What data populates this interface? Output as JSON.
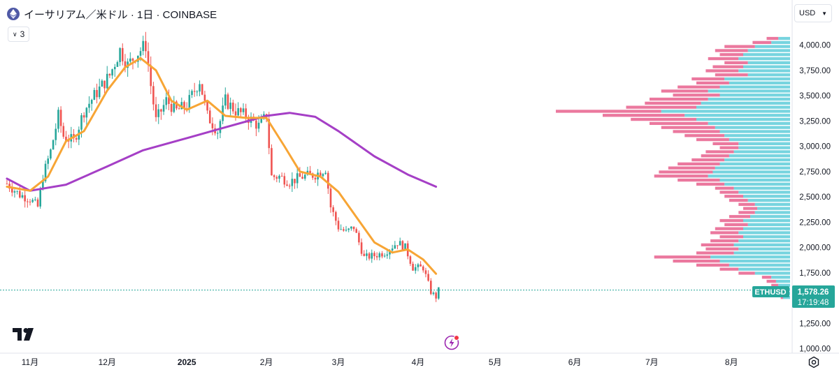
{
  "header": {
    "title": "イーサリアム／米ドル · 1日 · COINBASE",
    "coin_icon": "ethereum-icon",
    "indicator_count": "3",
    "currency": "USD"
  },
  "colors": {
    "up": "#26a69a",
    "down": "#ef5350",
    "ma_fast": "#f7a535",
    "ma_slow": "#a53fc6",
    "vp_up": "#49c6d4",
    "vp_down": "#e8608d",
    "price_line": "#26a69a"
  },
  "chart_data": {
    "type": "candlestick",
    "symbol": "ETHUSD",
    "x_tick_labels": [
      "11月",
      "12月",
      "2025",
      "2月",
      "3月",
      "4月",
      "5月",
      "6月",
      "7月",
      "8月"
    ],
    "y_tick_labels": [
      "1,000.00",
      "1,250.00",
      "1,500.00",
      "1,750.00",
      "2,000.00",
      "2,250.00",
      "2,500.00",
      "2,750.00",
      "3,000.00",
      "3,250.00",
      "3,500.00",
      "3,750.00",
      "4,000.00"
    ],
    "ylim": [
      980,
      4100
    ],
    "last_price": "1,578.26",
    "countdown": "17:19:48",
    "price_path": [
      [
        "2024-10-23",
        2630
      ],
      [
        "2024-10-28",
        2520
      ],
      [
        "2024-11-01",
        2480
      ],
      [
        "2024-11-04",
        2400
      ],
      [
        "2024-11-06",
        2700
      ],
      [
        "2024-11-09",
        2950
      ],
      [
        "2024-11-12",
        3300
      ],
      [
        "2024-11-14",
        3100
      ],
      [
        "2024-11-18",
        3050
      ],
      [
        "2024-11-22",
        3350
      ],
      [
        "2024-11-26",
        3500
      ],
      [
        "2024-11-29",
        3600
      ],
      [
        "2024-12-02",
        3700
      ],
      [
        "2024-12-06",
        3950
      ],
      [
        "2024-12-09",
        3800
      ],
      [
        "2024-12-12",
        3900
      ],
      [
        "2024-12-16",
        4000
      ],
      [
        "2024-12-18",
        3600
      ],
      [
        "2024-12-20",
        3250
      ],
      [
        "2024-12-24",
        3450
      ],
      [
        "2024-12-28",
        3350
      ],
      [
        "2025-01-01",
        3400
      ],
      [
        "2025-01-06",
        3650
      ],
      [
        "2025-01-09",
        3300
      ],
      [
        "2025-01-13",
        3150
      ],
      [
        "2025-01-16",
        3450
      ],
      [
        "2025-01-20",
        3350
      ],
      [
        "2025-01-24",
        3300
      ],
      [
        "2025-01-29",
        3200
      ],
      [
        "2025-02-01",
        3300
      ],
      [
        "2025-02-03",
        2700
      ],
      [
        "2025-02-06",
        2700
      ],
      [
        "2025-02-10",
        2650
      ],
      [
        "2025-02-15",
        2700
      ],
      [
        "2025-02-20",
        2720
      ],
      [
        "2025-02-24",
        2780
      ],
      [
        "2025-02-26",
        2400
      ],
      [
        "2025-03-01",
        2200
      ],
      [
        "2025-03-04",
        2150
      ],
      [
        "2025-03-07",
        2200
      ],
      [
        "2025-03-11",
        1900
      ],
      [
        "2025-03-15",
        1920
      ],
      [
        "2025-03-19",
        1950
      ],
      [
        "2025-03-24",
        2050
      ],
      [
        "2025-03-27",
        2000
      ],
      [
        "2025-03-30",
        1800
      ],
      [
        "2025-04-03",
        1800
      ],
      [
        "2025-04-06",
        1560
      ],
      [
        "2025-04-08",
        1510
      ],
      [
        "2025-04-09",
        1578
      ]
    ],
    "ma_fast": [
      [
        "2024-10-23",
        2600
      ],
      [
        "2024-11-01",
        2560
      ],
      [
        "2024-11-08",
        2700
      ],
      [
        "2024-11-15",
        3050
      ],
      [
        "2024-11-22",
        3150
      ],
      [
        "2024-12-01",
        3550
      ],
      [
        "2024-12-08",
        3780
      ],
      [
        "2024-12-14",
        3870
      ],
      [
        "2024-12-20",
        3750
      ],
      [
        "2024-12-26",
        3450
      ],
      [
        "2025-01-01",
        3360
      ],
      [
        "2025-01-09",
        3450
      ],
      [
        "2025-01-16",
        3300
      ],
      [
        "2025-01-24",
        3280
      ],
      [
        "2025-02-01",
        3280
      ],
      [
        "2025-02-08",
        3000
      ],
      [
        "2025-02-14",
        2750
      ],
      [
        "2025-02-22",
        2700
      ],
      [
        "2025-03-01",
        2550
      ],
      [
        "2025-03-08",
        2300
      ],
      [
        "2025-03-15",
        2050
      ],
      [
        "2025-03-22",
        1950
      ],
      [
        "2025-03-28",
        1980
      ],
      [
        "2025-04-03",
        1880
      ],
      [
        "2025-04-08",
        1740
      ]
    ],
    "ma_slow": [
      [
        "2024-10-23",
        2680
      ],
      [
        "2024-11-01",
        2560
      ],
      [
        "2024-11-15",
        2620
      ],
      [
        "2024-12-01",
        2800
      ],
      [
        "2024-12-15",
        2960
      ],
      [
        "2025-01-01",
        3080
      ],
      [
        "2025-01-15",
        3180
      ],
      [
        "2025-02-01",
        3300
      ],
      [
        "2025-02-10",
        3330
      ],
      [
        "2025-02-20",
        3290
      ],
      [
        "2025-03-01",
        3150
      ],
      [
        "2025-03-15",
        2900
      ],
      [
        "2025-03-28",
        2720
      ],
      [
        "2025-04-08",
        2600
      ]
    ],
    "volume_profile": {
      "description_of_levels": "horizontal histogram at right edge",
      "rows": [
        [
          4060,
          0.1,
          0.05
        ],
        [
          4020,
          0.16,
          0.08
        ],
        [
          3980,
          0.28,
          0.15
        ],
        [
          3940,
          0.32,
          0.18
        ],
        [
          3900,
          0.3,
          0.2
        ],
        [
          3860,
          0.35,
          0.22
        ],
        [
          3820,
          0.28,
          0.18
        ],
        [
          3780,
          0.33,
          0.2
        ],
        [
          3740,
          0.36,
          0.22
        ],
        [
          3700,
          0.32,
          0.18
        ],
        [
          3660,
          0.42,
          0.28
        ],
        [
          3620,
          0.4,
          0.26
        ],
        [
          3580,
          0.48,
          0.3
        ],
        [
          3540,
          0.55,
          0.35
        ],
        [
          3500,
          0.5,
          0.3
        ],
        [
          3460,
          0.6,
          0.35
        ],
        [
          3420,
          0.62,
          0.38
        ],
        [
          3380,
          0.7,
          0.4
        ],
        [
          3340,
          1.0,
          0.55
        ],
        [
          3300,
          0.8,
          0.45
        ],
        [
          3260,
          0.68,
          0.4
        ],
        [
          3220,
          0.6,
          0.35
        ],
        [
          3180,
          0.55,
          0.32
        ],
        [
          3140,
          0.5,
          0.3
        ],
        [
          3100,
          0.45,
          0.28
        ],
        [
          3060,
          0.4,
          0.26
        ],
        [
          3020,
          0.33,
          0.22
        ],
        [
          2980,
          0.3,
          0.22
        ],
        [
          2940,
          0.36,
          0.24
        ],
        [
          2900,
          0.38,
          0.26
        ],
        [
          2860,
          0.42,
          0.28
        ],
        [
          2820,
          0.48,
          0.3
        ],
        [
          2780,
          0.52,
          0.32
        ],
        [
          2740,
          0.56,
          0.33
        ],
        [
          2700,
          0.58,
          0.35
        ],
        [
          2660,
          0.48,
          0.3
        ],
        [
          2620,
          0.4,
          0.28
        ],
        [
          2580,
          0.32,
          0.24
        ],
        [
          2540,
          0.3,
          0.22
        ],
        [
          2500,
          0.28,
          0.2
        ],
        [
          2460,
          0.26,
          0.18
        ],
        [
          2420,
          0.22,
          0.15
        ],
        [
          2380,
          0.2,
          0.14
        ],
        [
          2340,
          0.22,
          0.15
        ],
        [
          2300,
          0.26,
          0.17
        ],
        [
          2260,
          0.3,
          0.2
        ],
        [
          2220,
          0.28,
          0.18
        ],
        [
          2180,
          0.32,
          0.2
        ],
        [
          2140,
          0.34,
          0.22
        ],
        [
          2100,
          0.3,
          0.2
        ],
        [
          2060,
          0.34,
          0.22
        ],
        [
          2020,
          0.38,
          0.24
        ],
        [
          1980,
          0.36,
          0.22
        ],
        [
          1940,
          0.4,
          0.24
        ],
        [
          1900,
          0.58,
          0.34
        ],
        [
          1860,
          0.5,
          0.3
        ],
        [
          1820,
          0.4,
          0.26
        ],
        [
          1780,
          0.3,
          0.22
        ],
        [
          1740,
          0.22,
          0.15
        ],
        [
          1700,
          0.12,
          0.08
        ],
        [
          1660,
          0.1,
          0.06
        ],
        [
          1620,
          0.08,
          0.05
        ],
        [
          1580,
          0.1,
          0.06
        ],
        [
          1540,
          0.06,
          0.04
        ],
        [
          1500,
          0.04,
          0.03
        ]
      ]
    }
  }
}
